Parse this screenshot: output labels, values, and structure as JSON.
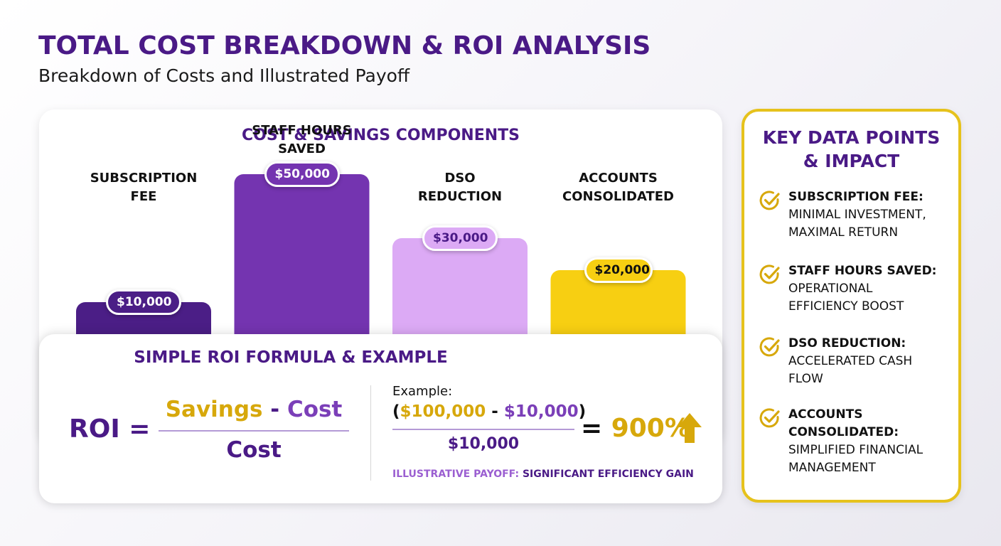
{
  "header": {
    "title": "TOTAL COST BREAKDOWN & ROI ANALYSIS",
    "subtitle": "Breakdown of Costs and Illustrated Payoff"
  },
  "chart_data": {
    "type": "bar",
    "title": "COST & SAVINGS COMPONENTS",
    "categories": [
      "SUBSCRIPTION FEE",
      "STAFF HOURS SAVED",
      "DSO REDUCTION",
      "ACCOUNTS CONSOLIDATED"
    ],
    "category_lines": [
      [
        "SUBSCRIPTION",
        "FEE"
      ],
      [
        "STAFF HOURS",
        "SAVED"
      ],
      [
        "DSO",
        "REDUCTION"
      ],
      [
        "ACCOUNTS",
        "CONSOLIDATED"
      ]
    ],
    "values": [
      10000,
      50000,
      30000,
      20000
    ],
    "value_labels": [
      "$10,000",
      "$50,000",
      "$30,000",
      "$20,000"
    ],
    "colors": [
      "#4b1e86",
      "#7434b0",
      "#dcaaf5",
      "#f7cf12"
    ],
    "label_text_colors": [
      "#ffffff",
      "#ffffff",
      "#4a1a86",
      "#111111"
    ],
    "xlabel": "",
    "ylabel": ""
  },
  "roi": {
    "title": "SIMPLE ROI FORMULA & EXAMPLE",
    "lhs": "ROI =",
    "num_savings": "Savings",
    "num_minus": " - ",
    "num_cost": "Cost",
    "denominator": "Cost",
    "example_label": "Example:",
    "ex_open": "(",
    "ex_val1": "$100,000",
    "ex_minus": " - ",
    "ex_val2": "$10,000",
    "ex_close": ")",
    "ex_denominator": "$10,000",
    "ex_equals": "= ",
    "ex_result": "900%",
    "payoff_prefix": "ILLUSTRATIVE PAYOFF: ",
    "payoff_text": "SIGNIFICANT EFFICIENCY GAIN"
  },
  "side": {
    "title_line1": "KEY DATA POINTS",
    "title_line2": "& IMPACT",
    "items": [
      {
        "head": [
          "SUBSCRIPTION FEE:"
        ],
        "desc": [
          "MINIMAL INVESTMENT,",
          "MAXIMAL RETURN"
        ]
      },
      {
        "head": [
          "STAFF HOURS SAVED:"
        ],
        "desc": [
          "OPERATIONAL",
          "EFFICIENCY BOOST"
        ]
      },
      {
        "head": [
          "DSO REDUCTION:"
        ],
        "desc": [
          "ACCELERATED CASH",
          "FLOW"
        ]
      },
      {
        "head": [
          "ACCOUNTS",
          "CONSOLIDATED:"
        ],
        "desc": [
          "SIMPLIFIED FINANCIAL",
          "MANAGEMENT"
        ]
      }
    ]
  },
  "colors": {
    "brand_purple": "#4a1a86",
    "accent_purple": "#7b3fb8",
    "accent_gold": "#d7a80b",
    "panel_border": "#e6c21c"
  }
}
